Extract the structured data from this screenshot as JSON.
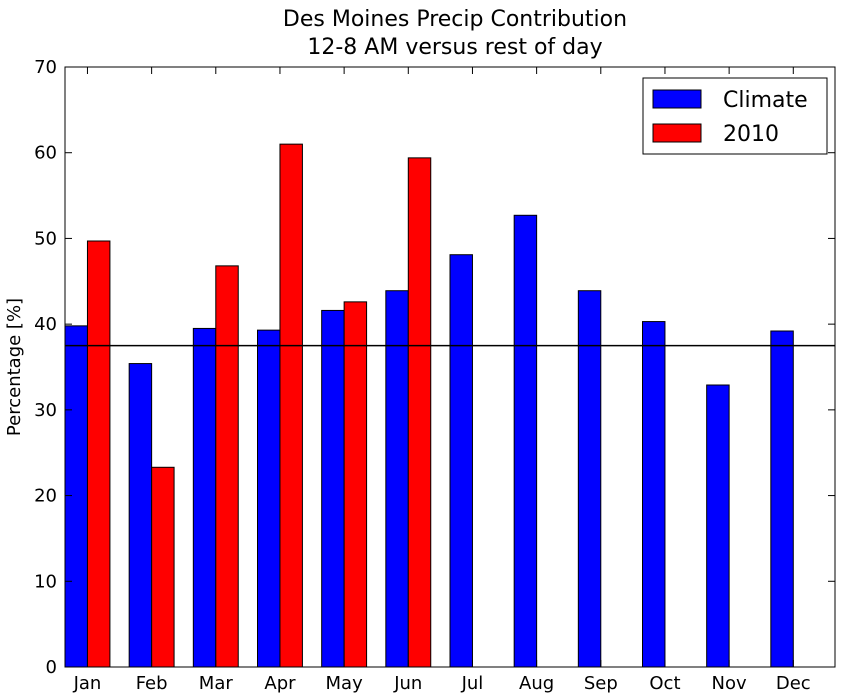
{
  "chart_data": {
    "type": "bar",
    "title": "Des Moines Precip Contribution",
    "subtitle": "12-8 AM versus rest of day",
    "xlabel": "",
    "ylabel": "Percentage [%]",
    "ylim": [
      0,
      70
    ],
    "yticks": [
      0,
      10,
      20,
      30,
      40,
      50,
      60,
      70
    ],
    "categories": [
      "Jan",
      "Feb",
      "Mar",
      "Apr",
      "May",
      "Jun",
      "Jul",
      "Aug",
      "Sep",
      "Oct",
      "Nov",
      "Dec"
    ],
    "series": [
      {
        "name": "Climate",
        "color": "#0000ff",
        "values": [
          39.8,
          35.4,
          39.5,
          39.3,
          41.6,
          43.9,
          48.1,
          52.7,
          43.9,
          40.3,
          32.9,
          39.2
        ]
      },
      {
        "name": "2010",
        "color": "#ff0000",
        "values": [
          49.7,
          23.3,
          46.8,
          61.0,
          42.6,
          59.4,
          null,
          null,
          null,
          null,
          null,
          null
        ]
      }
    ],
    "reference_line": 37.5,
    "grid": false,
    "legend_position": "top-right"
  }
}
